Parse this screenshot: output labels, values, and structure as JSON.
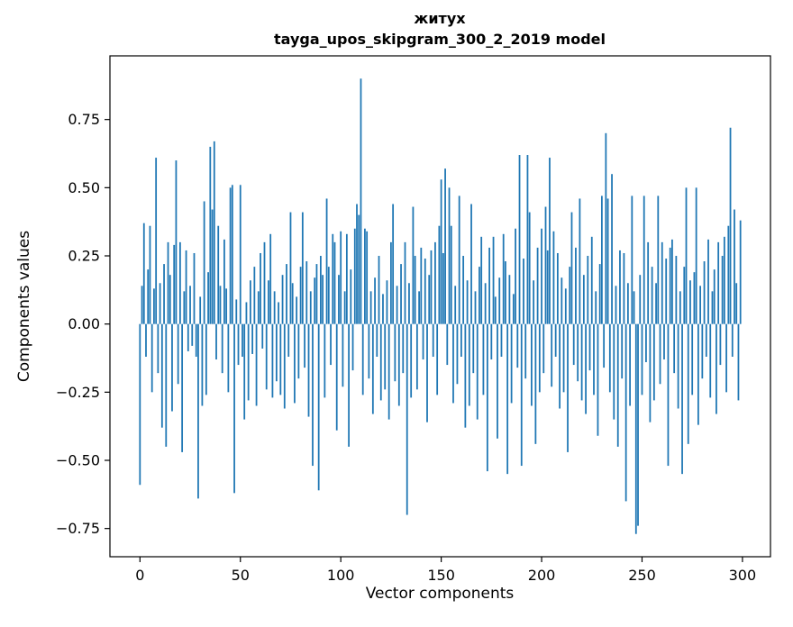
{
  "figure": {
    "background": "#ffffff",
    "border_color": "#000000"
  },
  "chart_data": {
    "type": "bar",
    "title": "житух",
    "subtitle": "tayga_upos_skipgram_300_2_2019 model",
    "xlabel": "Vector components",
    "ylabel": "Components values",
    "bar_color": "#1f77b4",
    "n_components": 300,
    "xtick_values": [
      0,
      50,
      100,
      150,
      200,
      250,
      300
    ],
    "xtick_labels": [
      "0",
      "50",
      "100",
      "150",
      "200",
      "250",
      "300"
    ],
    "ytick_values": [
      -0.75,
      -0.5,
      -0.25,
      0,
      0.25,
      0.5,
      0.75
    ],
    "ytick_labels": [
      "−0.75",
      "−0.50",
      "−0.25",
      "0.00",
      "0.25",
      "0.50",
      "0.75"
    ],
    "xlim": [
      -14.95,
      313.95
    ],
    "ylim": [
      -0.8535,
      0.9835
    ],
    "grid": false,
    "legend": "none",
    "values": [
      -0.59,
      0.14,
      0.37,
      -0.12,
      0.2,
      0.36,
      -0.25,
      0.13,
      0.61,
      -0.18,
      0.15,
      -0.38,
      0.22,
      -0.45,
      0.3,
      0.18,
      -0.32,
      0.29,
      0.6,
      -0.22,
      0.3,
      -0.47,
      0.12,
      0.27,
      -0.1,
      0.14,
      -0.08,
      0.26,
      -0.12,
      -0.64,
      0.1,
      -0.3,
      0.45,
      -0.26,
      0.19,
      0.65,
      0.42,
      0.67,
      -0.13,
      0.36,
      0.14,
      -0.18,
      0.31,
      0.13,
      -0.25,
      0.5,
      0.51,
      -0.62,
      0.09,
      -0.15,
      0.51,
      -0.12,
      -0.35,
      0.08,
      -0.28,
      0.16,
      -0.11,
      0.21,
      -0.3,
      0.12,
      0.26,
      -0.09,
      0.3,
      -0.24,
      0.16,
      0.33,
      -0.27,
      0.12,
      -0.21,
      0.08,
      -0.26,
      0.18,
      -0.31,
      0.22,
      -0.12,
      0.41,
      0.15,
      -0.29,
      0.1,
      -0.2,
      0.21,
      0.41,
      -0.16,
      0.23,
      -0.34,
      0.12,
      -0.52,
      0.17,
      0.22,
      -0.61,
      0.25,
      0.18,
      -0.27,
      0.46,
      0.21,
      -0.15,
      0.33,
      0.3,
      -0.39,
      0.18,
      0.34,
      -0.23,
      0.12,
      0.33,
      -0.45,
      0.2,
      -0.17,
      0.35,
      0.44,
      0.4,
      0.9,
      -0.26,
      0.35,
      0.34,
      -0.2,
      0.12,
      -0.33,
      0.17,
      -0.12,
      0.25,
      -0.28,
      0.11,
      -0.24,
      0.16,
      -0.35,
      0.3,
      0.44,
      -0.21,
      0.14,
      -0.3,
      0.22,
      -0.18,
      0.3,
      -0.7,
      0.15,
      -0.27,
      0.43,
      0.25,
      -0.24,
      0.12,
      0.28,
      -0.13,
      0.24,
      -0.36,
      0.18,
      0.27,
      -0.12,
      0.3,
      -0.26,
      0.36,
      0.53,
      0.26,
      0.57,
      -0.15,
      0.5,
      0.36,
      -0.29,
      0.14,
      -0.22,
      0.47,
      -0.12,
      0.25,
      -0.38,
      0.16,
      -0.3,
      0.44,
      -0.18,
      0.12,
      -0.35,
      0.21,
      0.32,
      -0.26,
      0.15,
      -0.54,
      0.28,
      -0.13,
      0.32,
      0.1,
      -0.42,
      0.17,
      -0.12,
      0.33,
      0.23,
      -0.55,
      0.18,
      -0.29,
      0.11,
      0.35,
      -0.16,
      0.62,
      -0.52,
      0.24,
      -0.2,
      0.62,
      0.41,
      -0.3,
      0.16,
      -0.44,
      0.28,
      -0.25,
      0.35,
      -0.18,
      0.43,
      0.27,
      0.61,
      -0.23,
      0.34,
      -0.12,
      0.26,
      -0.31,
      0.17,
      -0.25,
      0.13,
      -0.47,
      0.21,
      0.41,
      -0.15,
      0.28,
      -0.21,
      0.46,
      -0.28,
      0.18,
      -0.33,
      0.25,
      -0.17,
      0.32,
      -0.26,
      0.12,
      -0.41,
      0.22,
      0.47,
      -0.16,
      0.7,
      0.46,
      -0.25,
      0.55,
      -0.35,
      0.14,
      -0.45,
      0.27,
      -0.2,
      0.26,
      -0.65,
      0.15,
      -0.3,
      0.47,
      0.12,
      -0.77,
      -0.74,
      0.18,
      -0.26,
      0.47,
      -0.14,
      0.3,
      -0.36,
      0.21,
      -0.28,
      0.15,
      0.47,
      -0.22,
      0.3,
      -0.13,
      0.24,
      -0.52,
      0.28,
      0.31,
      -0.18,
      0.25,
      -0.31,
      0.12,
      -0.55,
      0.21,
      0.5,
      -0.44,
      0.16,
      -0.26,
      0.19,
      0.5,
      -0.37,
      0.14,
      -0.2,
      0.23,
      -0.12,
      0.31,
      -0.27,
      0.12,
      0.2,
      -0.33,
      0.3,
      -0.15,
      0.25,
      0.32,
      -0.25,
      0.36,
      0.72,
      -0.12,
      0.42,
      0.15,
      -0.28,
      0.38
    ]
  }
}
